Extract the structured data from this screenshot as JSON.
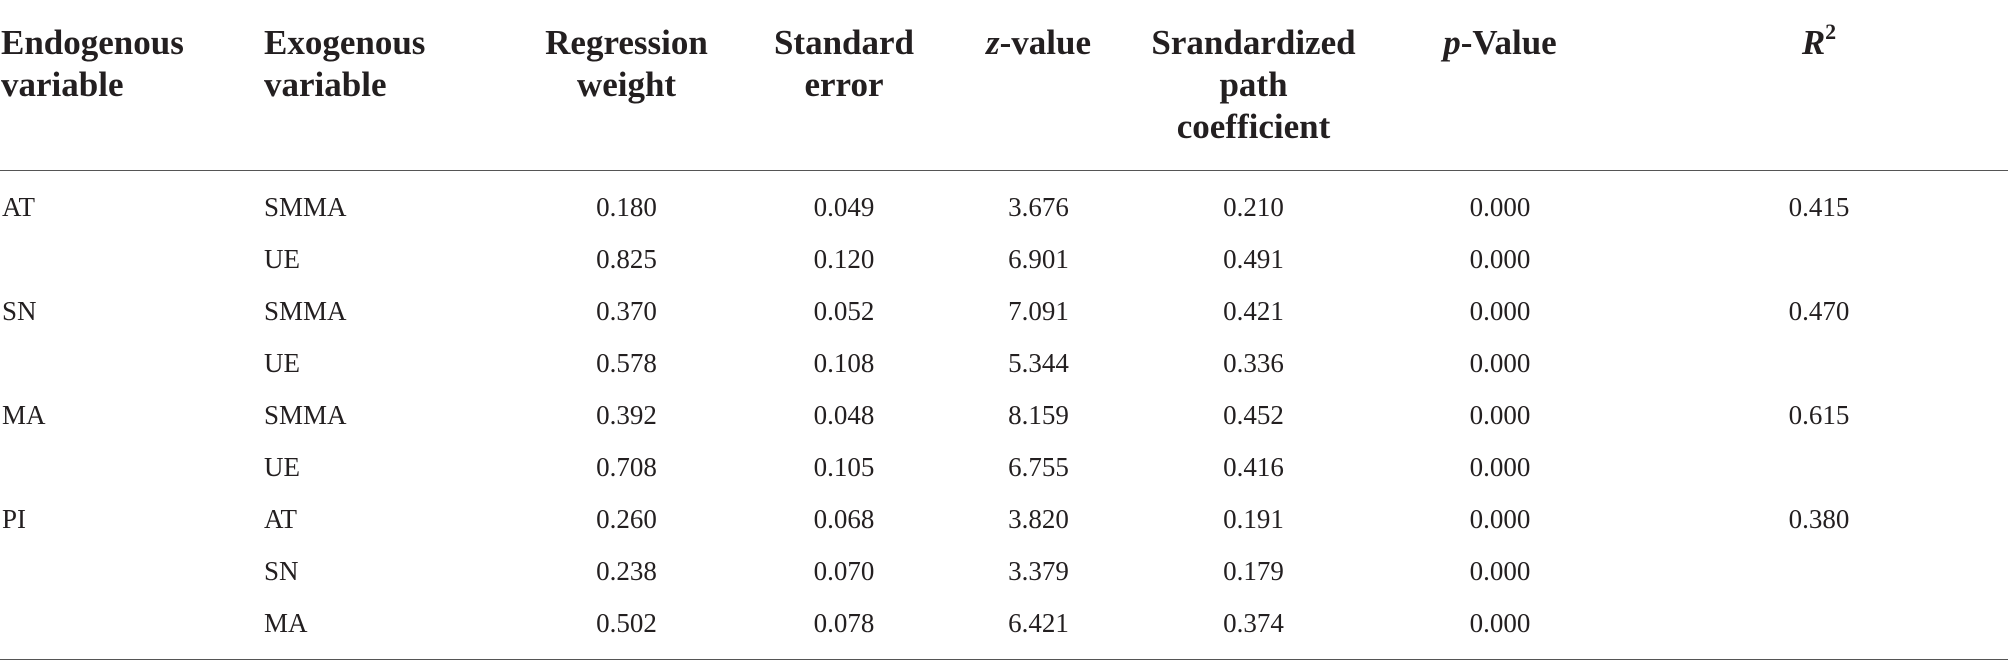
{
  "table": {
    "headers": {
      "endogenous_line1": "Endogenous",
      "endogenous_line2": "variable",
      "exogenous_line1": "Exogenous",
      "exogenous_line2": "variable",
      "regression_line1": "Regression",
      "regression_line2": "weight",
      "stderr_line1": "Standard",
      "stderr_line2": "error",
      "zvalue_italic": "z",
      "zvalue_rest": "-value",
      "std_path_line1": "Srandardized",
      "std_path_line2": "path",
      "std_path_line3": "coefficient",
      "pvalue_italic": "p",
      "pvalue_rest": "-Value",
      "r2_letter": "R",
      "r2_sup": "2"
    },
    "rows": [
      {
        "endogenous": "AT",
        "exogenous": "SMMA",
        "regression_weight": "0.180",
        "standard_error": "0.049",
        "z_value": "3.676",
        "std_path_coef": "0.210",
        "p_value": "0.000",
        "r2": "0.415"
      },
      {
        "endogenous": "",
        "exogenous": "UE",
        "regression_weight": "0.825",
        "standard_error": "0.120",
        "z_value": "6.901",
        "std_path_coef": "0.491",
        "p_value": "0.000",
        "r2": ""
      },
      {
        "endogenous": "SN",
        "exogenous": "SMMA",
        "regression_weight": "0.370",
        "standard_error": "0.052",
        "z_value": "7.091",
        "std_path_coef": "0.421",
        "p_value": "0.000",
        "r2": "0.470"
      },
      {
        "endogenous": "",
        "exogenous": "UE",
        "regression_weight": "0.578",
        "standard_error": "0.108",
        "z_value": "5.344",
        "std_path_coef": "0.336",
        "p_value": "0.000",
        "r2": ""
      },
      {
        "endogenous": "MA",
        "exogenous": "SMMA",
        "regression_weight": "0.392",
        "standard_error": "0.048",
        "z_value": "8.159",
        "std_path_coef": "0.452",
        "p_value": "0.000",
        "r2": "0.615"
      },
      {
        "endogenous": "",
        "exogenous": "UE",
        "regression_weight": "0.708",
        "standard_error": "0.105",
        "z_value": "6.755",
        "std_path_coef": "0.416",
        "p_value": "0.000",
        "r2": ""
      },
      {
        "endogenous": "PI",
        "exogenous": "AT",
        "regression_weight": "0.260",
        "standard_error": "0.068",
        "z_value": "3.820",
        "std_path_coef": "0.191",
        "p_value": "0.000",
        "r2": "0.380"
      },
      {
        "endogenous": "",
        "exogenous": "SN",
        "regression_weight": "0.238",
        "standard_error": "0.070",
        "z_value": "3.379",
        "std_path_coef": "0.179",
        "p_value": "0.000",
        "r2": ""
      },
      {
        "endogenous": "",
        "exogenous": "MA",
        "regression_weight": "0.502",
        "standard_error": "0.078",
        "z_value": "6.421",
        "std_path_coef": "0.374",
        "p_value": "0.000",
        "r2": ""
      }
    ]
  }
}
